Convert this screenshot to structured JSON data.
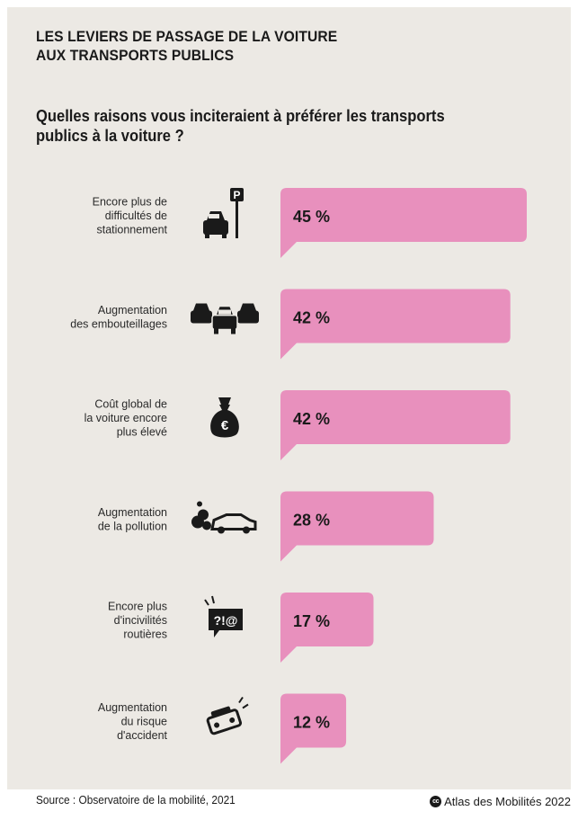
{
  "title_lines": [
    "LES LEVIERS DE PASSAGE DE LA VOITURE",
    "AUX TRANSPORTS PUBLICS"
  ],
  "question_lines": [
    "Quelles raisons vous inciteraient à préférer les transports",
    "publics à la voiture ?"
  ],
  "source": "Source : Observatoire de la mobilité, 2021",
  "credit": "Atlas des Mobilités 2022",
  "colors": {
    "bar": "#e890bd",
    "background": "#ece9e4",
    "icon": "#1a1a1a"
  },
  "chart_data": {
    "type": "bar",
    "orientation": "horizontal",
    "categories": [
      "Encore plus de difficultés de stationnement",
      "Augmentation des embouteillages",
      "Coût global de la voiture encore plus élevé",
      "Augmentation de la pollution",
      "Encore plus d'incivilités routières",
      "Augmentation du risque d'accident"
    ],
    "category_lines": [
      [
        "Encore plus de",
        "difficultés de",
        "stationnement"
      ],
      [
        "Augmentation",
        "des embouteillages"
      ],
      [
        "Coût global de",
        "la voiture encore",
        "plus élevé"
      ],
      [
        "Augmentation",
        "de la pollution"
      ],
      [
        "Encore plus",
        "d'incivilités",
        "routières"
      ],
      [
        "Augmentation",
        "du risque",
        "d'accident"
      ]
    ],
    "values": [
      45,
      42,
      42,
      28,
      17,
      12
    ],
    "value_labels": [
      "45 %",
      "42 %",
      "42 %",
      "28 %",
      "17 %",
      "12 %"
    ],
    "icons": [
      "parking-car-icon",
      "traffic-jam-icon",
      "money-bag-euro-icon",
      "car-pollution-icon",
      "angry-speech-bubble-icon",
      "car-accident-icon"
    ],
    "unit": "%",
    "xlim": [
      0,
      45
    ]
  }
}
